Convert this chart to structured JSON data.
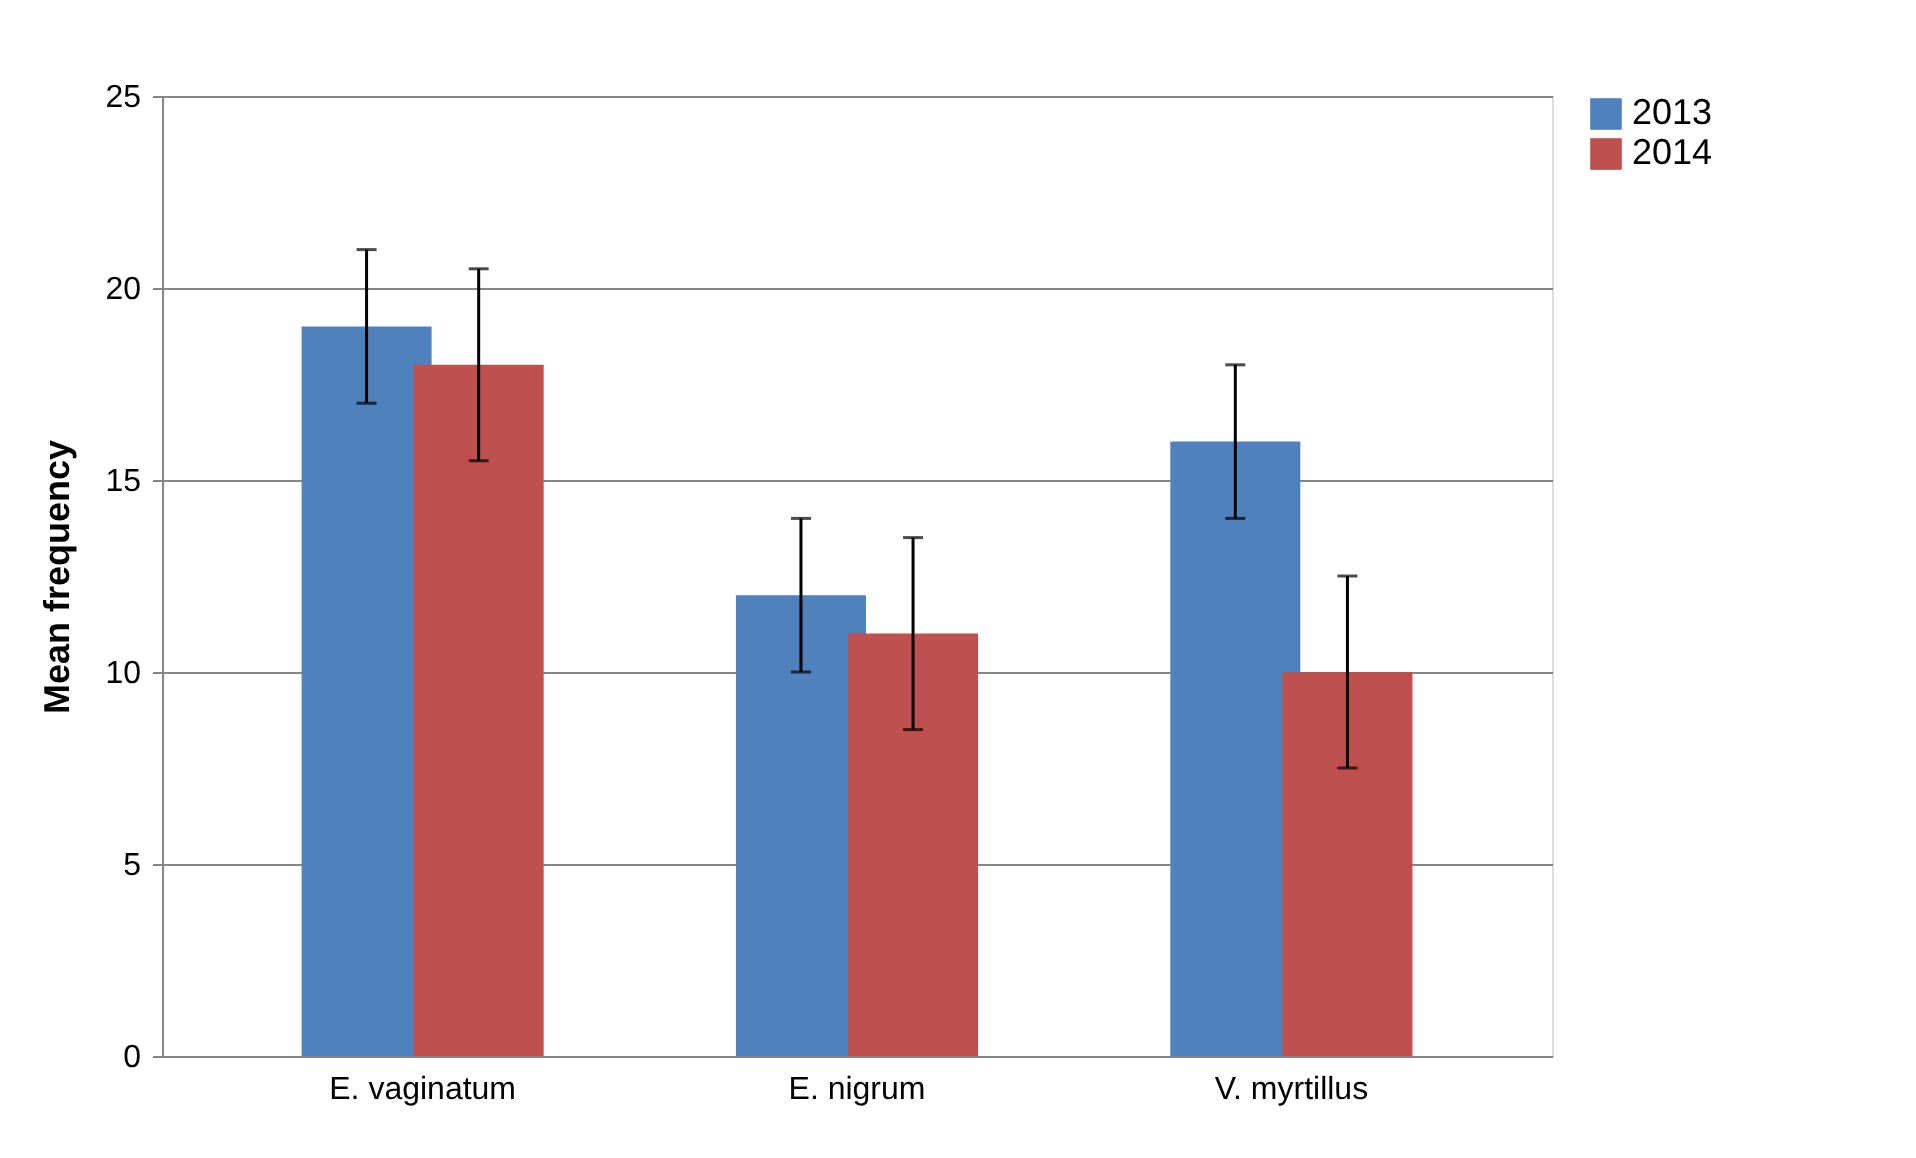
{
  "chart_data": {
    "type": "bar",
    "ylabel": "Mean frequency",
    "categories": [
      "E. vaginatum",
      "E. nigrum",
      "V. myrtillus"
    ],
    "series": [
      {
        "name": "2013",
        "color": "#4f81bd",
        "values": [
          19,
          12,
          16
        ],
        "errors": [
          2,
          2,
          2
        ]
      },
      {
        "name": "2014",
        "color": "#c0504d",
        "values": [
          18,
          11,
          10
        ],
        "errors": [
          2.5,
          2.5,
          2.5
        ]
      }
    ],
    "ylim": [
      0,
      25
    ],
    "yticks": [
      0,
      5,
      10,
      15,
      20,
      25
    ],
    "grid": "y",
    "legend": "right"
  }
}
